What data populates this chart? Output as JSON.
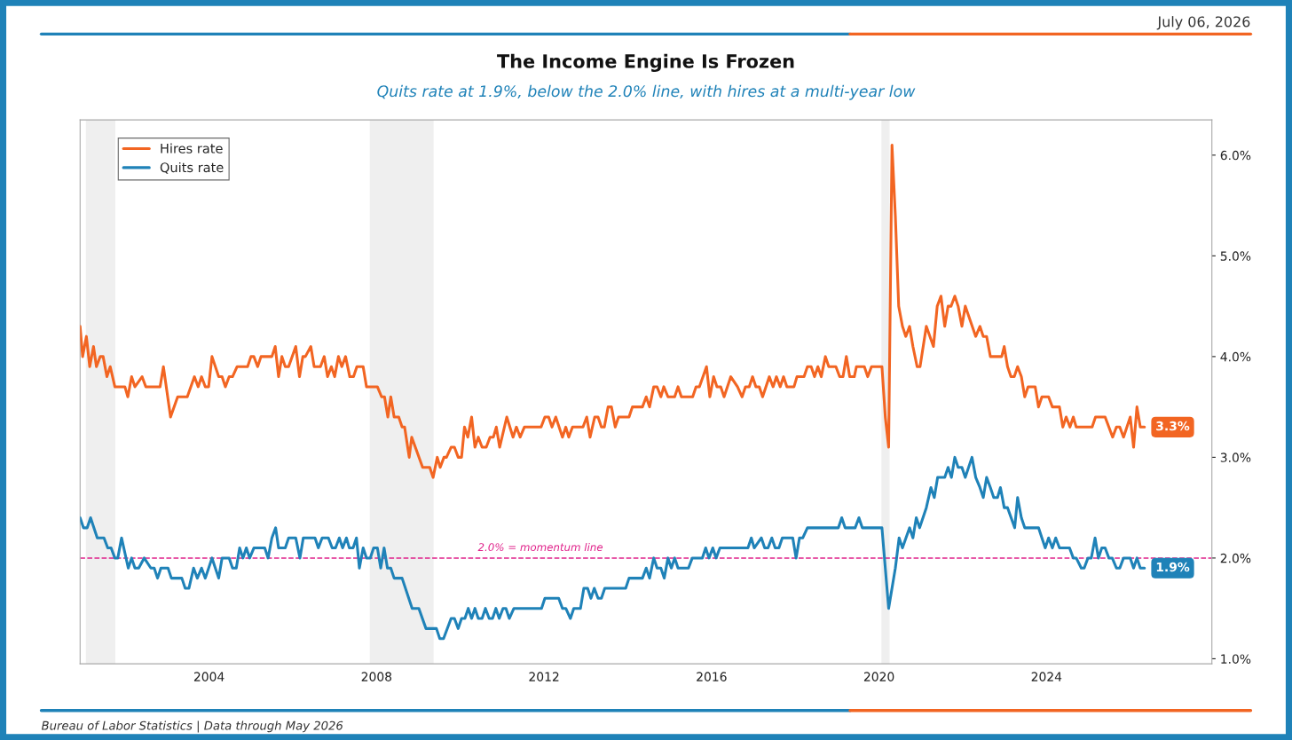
{
  "chart_data": {
    "type": "line",
    "title": "The Income Engine Is Frozen",
    "subtitle": "Quits rate at 1.9%, below the 2.0% line, with hires at a multi-year low",
    "annotations": [
      "July 06, 2026",
      "Bureau of Labor Statistics | Data through May 2026",
      {
        "text": "3.3%",
        "x": 2026.34,
        "y": 3.3
      },
      {
        "text": "1.9%",
        "x": 2026.34,
        "y": 1.9
      }
    ],
    "series": [
      {
        "name": "Hires rate",
        "color": "#f26522",
        "x": [
          2000.92,
          2000.98,
          2001.07,
          2001.15,
          2001.24,
          2001.31,
          2001.4,
          2001.47,
          2001.56,
          2001.64,
          2001.75,
          2001.99,
          2002.06,
          2002.15,
          2002.23,
          2002.4,
          2002.49,
          2002.83,
          2002.91,
          2003.08,
          2003.25,
          2003.48,
          2003.65,
          2003.74,
          2003.82,
          2003.91,
          2003.99,
          2004.07,
          2004.23,
          2004.31,
          2004.39,
          2004.48,
          2004.56,
          2004.67,
          2004.92,
          2005.0,
          2005.07,
          2005.16,
          2005.24,
          2005.5,
          2005.58,
          2005.66,
          2005.74,
          2005.82,
          2005.9,
          2006.07,
          2006.16,
          2006.24,
          2006.3,
          2006.43,
          2006.51,
          2006.66,
          2006.75,
          2006.83,
          2006.92,
          2007.0,
          2007.09,
          2007.17,
          2007.26,
          2007.36,
          2007.45,
          2007.53,
          2007.68,
          2007.76,
          2008.02,
          2008.12,
          2008.19,
          2008.27,
          2008.34,
          2008.42,
          2008.53,
          2008.61,
          2008.67,
          2008.78,
          2008.84,
          2009.1,
          2009.27,
          2009.35,
          2009.45,
          2009.52,
          2009.61,
          2009.67,
          2009.78,
          2009.86,
          2009.95,
          2010.03,
          2010.1,
          2010.18,
          2010.27,
          2010.35,
          2010.43,
          2010.52,
          2010.62,
          2010.71,
          2010.79,
          2010.86,
          2010.94,
          2011.11,
          2011.26,
          2011.34,
          2011.43,
          2011.53,
          2011.93,
          2012.02,
          2012.11,
          2012.19,
          2012.28,
          2012.44,
          2012.52,
          2012.59,
          2012.68,
          2012.93,
          2013.02,
          2013.1,
          2013.21,
          2013.29,
          2013.37,
          2013.44,
          2013.53,
          2013.61,
          2013.7,
          2013.78,
          2014.03,
          2014.11,
          2014.35,
          2014.44,
          2014.52,
          2014.62,
          2014.7,
          2014.79,
          2014.86,
          2014.96,
          2015.12,
          2015.2,
          2015.28,
          2015.55,
          2015.63,
          2015.71,
          2015.88,
          2015.96,
          2016.05,
          2016.13,
          2016.22,
          2016.3,
          2016.46,
          2016.62,
          2016.73,
          2016.81,
          2016.9,
          2016.98,
          2017.06,
          2017.14,
          2017.22,
          2017.38,
          2017.47,
          2017.55,
          2017.64,
          2017.72,
          2017.8,
          2017.97,
          2018.04,
          2018.21,
          2018.29,
          2018.38,
          2018.46,
          2018.54,
          2018.62,
          2018.72,
          2018.8,
          2018.97,
          2019.06,
          2019.14,
          2019.22,
          2019.3,
          2019.41,
          2019.46,
          2019.65,
          2019.73,
          2019.82,
          2020.07,
          2020.15,
          2020.23,
          2020.31,
          2020.39,
          2020.47,
          2020.56,
          2020.64,
          2020.73,
          2020.81,
          2020.91,
          2020.98,
          2021.13,
          2021.3,
          2021.39,
          2021.48,
          2021.57,
          2021.65,
          2021.72,
          2021.81,
          2021.89,
          2021.98,
          2022.06,
          2022.31,
          2022.41,
          2022.49,
          2022.57,
          2022.66,
          2022.93,
          2022.99,
          2023.07,
          2023.15,
          2023.23,
          2023.31,
          2023.4,
          2023.48,
          2023.56,
          2023.73,
          2023.81,
          2023.89,
          2024.05,
          2024.14,
          2024.31,
          2024.39,
          2024.47,
          2024.56,
          2024.64,
          2024.71,
          2025.09,
          2025.17,
          2025.4,
          2025.58,
          2025.67,
          2025.75,
          2025.84,
          2026.0,
          2026.08,
          2026.16,
          2026.24,
          2026.34
        ],
        "values": [
          4.3,
          4.0,
          4.2,
          3.9,
          4.1,
          3.9,
          4.0,
          4.0,
          3.8,
          3.9,
          3.7,
          3.7,
          3.6,
          3.8,
          3.7,
          3.8,
          3.7,
          3.7,
          3.9,
          3.4,
          3.6,
          3.6,
          3.8,
          3.7,
          3.8,
          3.7,
          3.7,
          4.0,
          3.8,
          3.8,
          3.7,
          3.8,
          3.8,
          3.9,
          3.9,
          4.0,
          4.0,
          3.9,
          4.0,
          4.0,
          4.1,
          3.8,
          4.0,
          3.9,
          3.9,
          4.1,
          3.8,
          4.0,
          4.0,
          4.1,
          3.9,
          3.9,
          4.0,
          3.8,
          3.9,
          3.8,
          4.0,
          3.9,
          4.0,
          3.8,
          3.8,
          3.9,
          3.9,
          3.7,
          3.7,
          3.6,
          3.6,
          3.4,
          3.6,
          3.4,
          3.4,
          3.3,
          3.3,
          3.0,
          3.2,
          2.9,
          2.9,
          2.8,
          3.0,
          2.9,
          3.0,
          3.0,
          3.1,
          3.1,
          3.0,
          3.0,
          3.3,
          3.2,
          3.4,
          3.1,
          3.2,
          3.1,
          3.1,
          3.2,
          3.2,
          3.3,
          3.1,
          3.4,
          3.2,
          3.3,
          3.2,
          3.3,
          3.3,
          3.4,
          3.4,
          3.3,
          3.4,
          3.2,
          3.3,
          3.2,
          3.3,
          3.3,
          3.4,
          3.2,
          3.4,
          3.4,
          3.3,
          3.3,
          3.5,
          3.5,
          3.3,
          3.4,
          3.4,
          3.5,
          3.5,
          3.6,
          3.5,
          3.7,
          3.7,
          3.6,
          3.7,
          3.6,
          3.6,
          3.7,
          3.6,
          3.6,
          3.7,
          3.7,
          3.9,
          3.6,
          3.8,
          3.7,
          3.7,
          3.6,
          3.8,
          3.7,
          3.6,
          3.7,
          3.7,
          3.8,
          3.7,
          3.7,
          3.6,
          3.8,
          3.7,
          3.8,
          3.7,
          3.8,
          3.7,
          3.7,
          3.8,
          3.8,
          3.9,
          3.9,
          3.8,
          3.9,
          3.8,
          4.0,
          3.9,
          3.9,
          3.8,
          3.8,
          4.0,
          3.8,
          3.8,
          3.9,
          3.9,
          3.8,
          3.9,
          3.9,
          3.4,
          3.1,
          6.1,
          5.4,
          4.5,
          4.3,
          4.2,
          4.3,
          4.1,
          3.9,
          3.9,
          4.3,
          4.1,
          4.5,
          4.6,
          4.3,
          4.5,
          4.5,
          4.6,
          4.5,
          4.3,
          4.5,
          4.2,
          4.3,
          4.2,
          4.2,
          4.0,
          4.0,
          4.1,
          3.9,
          3.8,
          3.8,
          3.9,
          3.8,
          3.6,
          3.7,
          3.7,
          3.5,
          3.6,
          3.6,
          3.5,
          3.5,
          3.3,
          3.4,
          3.3,
          3.4,
          3.3,
          3.3,
          3.4,
          3.4,
          3.2,
          3.3,
          3.3,
          3.2,
          3.4,
          3.1,
          3.5,
          3.3,
          3.3
        ]
      },
      {
        "name": "Quits rate",
        "color": "#1f82b8",
        "x": [
          2000.92,
          2001.0,
          2001.09,
          2001.17,
          2001.33,
          2001.49,
          2001.58,
          2001.66,
          2001.75,
          2001.82,
          2001.91,
          2002.07,
          2002.15,
          2002.23,
          2002.32,
          2002.45,
          2002.61,
          2002.69,
          2002.77,
          2002.85,
          2003.02,
          2003.1,
          2003.27,
          2003.35,
          2003.43,
          2003.52,
          2003.63,
          2003.72,
          2003.82,
          2003.91,
          2004.07,
          2004.23,
          2004.31,
          2004.48,
          2004.56,
          2004.65,
          2004.73,
          2004.81,
          2004.89,
          2004.97,
          2005.07,
          2005.33,
          2005.41,
          2005.5,
          2005.59,
          2005.66,
          2005.82,
          2005.9,
          2006.07,
          2006.17,
          2006.25,
          2006.53,
          2006.61,
          2006.7,
          2006.85,
          2006.94,
          2007.02,
          2007.11,
          2007.19,
          2007.28,
          2007.35,
          2007.44,
          2007.52,
          2007.59,
          2007.68,
          2007.76,
          2007.85,
          2007.93,
          2008.02,
          2008.1,
          2008.18,
          2008.26,
          2008.34,
          2008.42,
          2008.61,
          2008.85,
          2009.01,
          2009.18,
          2009.43,
          2009.51,
          2009.6,
          2009.78,
          2009.86,
          2009.95,
          2010.03,
          2010.11,
          2010.19,
          2010.27,
          2010.35,
          2010.43,
          2010.52,
          2010.6,
          2010.69,
          2010.77,
          2010.85,
          2010.93,
          2011.02,
          2011.09,
          2011.17,
          2011.28,
          2011.94,
          2012.02,
          2012.35,
          2012.44,
          2012.52,
          2012.63,
          2012.71,
          2012.87,
          2012.95,
          2013.04,
          2013.12,
          2013.2,
          2013.29,
          2013.37,
          2013.45,
          2013.95,
          2014.03,
          2014.35,
          2014.44,
          2014.52,
          2014.62,
          2014.7,
          2014.79,
          2014.87,
          2014.96,
          2015.04,
          2015.12,
          2015.2,
          2015.45,
          2015.54,
          2015.78,
          2015.86,
          2015.94,
          2016.03,
          2016.11,
          2016.2,
          2016.87,
          2016.95,
          2017.02,
          2017.19,
          2017.27,
          2017.35,
          2017.44,
          2017.52,
          2017.61,
          2017.69,
          2017.94,
          2018.02,
          2018.1,
          2018.18,
          2018.29,
          2019.03,
          2019.11,
          2019.19,
          2019.43,
          2019.52,
          2019.6,
          2020.07,
          2020.23,
          2020.39,
          2020.48,
          2020.56,
          2020.73,
          2020.81,
          2020.89,
          2020.97,
          2021.13,
          2021.24,
          2021.32,
          2021.4,
          2021.57,
          2021.65,
          2021.73,
          2021.81,
          2021.89,
          2021.98,
          2022.06,
          2022.22,
          2022.31,
          2022.41,
          2022.49,
          2022.57,
          2022.66,
          2022.74,
          2022.83,
          2022.9,
          2022.99,
          2023.07,
          2023.24,
          2023.31,
          2023.4,
          2023.48,
          2023.81,
          2023.89,
          2023.97,
          2024.05,
          2024.14,
          2024.22,
          2024.31,
          2024.55,
          2024.64,
          2024.71,
          2024.83,
          2024.9,
          2024.99,
          2025.07,
          2025.16,
          2025.24,
          2025.32,
          2025.4,
          2025.49,
          2025.57,
          2025.67,
          2025.75,
          2025.84,
          2026.0,
          2026.08,
          2026.16,
          2026.24,
          2026.34
        ],
        "values": [
          2.4,
          2.3,
          2.3,
          2.4,
          2.2,
          2.2,
          2.1,
          2.1,
          2.0,
          2.0,
          2.2,
          1.9,
          2.0,
          1.9,
          1.9,
          2.0,
          1.9,
          1.9,
          1.8,
          1.9,
          1.9,
          1.8,
          1.8,
          1.8,
          1.7,
          1.7,
          1.9,
          1.8,
          1.9,
          1.8,
          2.0,
          1.8,
          2.0,
          2.0,
          1.9,
          1.9,
          2.1,
          2.0,
          2.1,
          2.0,
          2.1,
          2.1,
          2.0,
          2.2,
          2.3,
          2.1,
          2.1,
          2.2,
          2.2,
          2.0,
          2.2,
          2.2,
          2.1,
          2.2,
          2.2,
          2.1,
          2.1,
          2.2,
          2.1,
          2.2,
          2.1,
          2.1,
          2.2,
          1.9,
          2.1,
          2.0,
          2.0,
          2.1,
          2.1,
          1.9,
          2.1,
          1.9,
          1.9,
          1.8,
          1.8,
          1.5,
          1.5,
          1.3,
          1.3,
          1.2,
          1.2,
          1.4,
          1.4,
          1.3,
          1.4,
          1.4,
          1.5,
          1.4,
          1.5,
          1.4,
          1.4,
          1.5,
          1.4,
          1.4,
          1.5,
          1.4,
          1.5,
          1.5,
          1.4,
          1.5,
          1.5,
          1.6,
          1.6,
          1.5,
          1.5,
          1.4,
          1.5,
          1.5,
          1.7,
          1.7,
          1.6,
          1.7,
          1.6,
          1.6,
          1.7,
          1.7,
          1.8,
          1.8,
          1.9,
          1.8,
          2.0,
          1.9,
          1.9,
          1.8,
          2.0,
          1.9,
          2.0,
          1.9,
          1.9,
          2.0,
          2.0,
          2.1,
          2.0,
          2.1,
          2.0,
          2.1,
          2.1,
          2.2,
          2.1,
          2.2,
          2.1,
          2.1,
          2.2,
          2.1,
          2.1,
          2.2,
          2.2,
          2.0,
          2.2,
          2.2,
          2.3,
          2.3,
          2.4,
          2.3,
          2.3,
          2.4,
          2.3,
          2.3,
          1.5,
          1.9,
          2.2,
          2.1,
          2.3,
          2.2,
          2.4,
          2.3,
          2.5,
          2.7,
          2.6,
          2.8,
          2.8,
          2.9,
          2.8,
          3.0,
          2.9,
          2.9,
          2.8,
          3.0,
          2.8,
          2.7,
          2.6,
          2.8,
          2.7,
          2.6,
          2.6,
          2.7,
          2.5,
          2.5,
          2.3,
          2.6,
          2.4,
          2.3,
          2.3,
          2.2,
          2.1,
          2.2,
          2.1,
          2.2,
          2.1,
          2.1,
          2.0,
          2.0,
          1.9,
          1.9,
          2.0,
          2.0,
          2.2,
          2.0,
          2.1,
          2.1,
          2.0,
          2.0,
          1.9,
          1.9,
          2.0,
          2.0,
          1.9,
          2.0,
          1.9,
          1.9
        ]
      }
    ],
    "xlim": [
      2000.92,
      2027.95
    ],
    "xticks": [
      2004,
      2008,
      2012,
      2016,
      2020,
      2024
    ],
    "ylim": [
      0.95,
      6.35
    ],
    "yticks": [
      {
        "value": 1.0,
        "label": "1.0%"
      },
      {
        "value": 2.0,
        "label": "2.0%"
      },
      {
        "value": 3.0,
        "label": "3.0%"
      },
      {
        "value": 4.0,
        "label": "4.0%"
      },
      {
        "value": 5.0,
        "label": "5.0%"
      },
      {
        "value": 6.0,
        "label": "6.0%"
      }
    ],
    "ref_lines": [
      {
        "axis": "y",
        "value": 2.0,
        "label": "2.0% = momentum line",
        "color": "#e0218a",
        "line_style": "dashed"
      }
    ],
    "bands": [
      {
        "axis": "x",
        "from": 2001.07,
        "to": 2001.75,
        "color": "#efefef"
      },
      {
        "axis": "x",
        "from": 2007.85,
        "to": 2009.35,
        "color": "#efefef"
      },
      {
        "axis": "x",
        "from": 2020.07,
        "to": 2020.24,
        "color": "#efefef"
      }
    ],
    "legend": "top left",
    "grid": false,
    "line_style": "solid",
    "marker": "none"
  }
}
